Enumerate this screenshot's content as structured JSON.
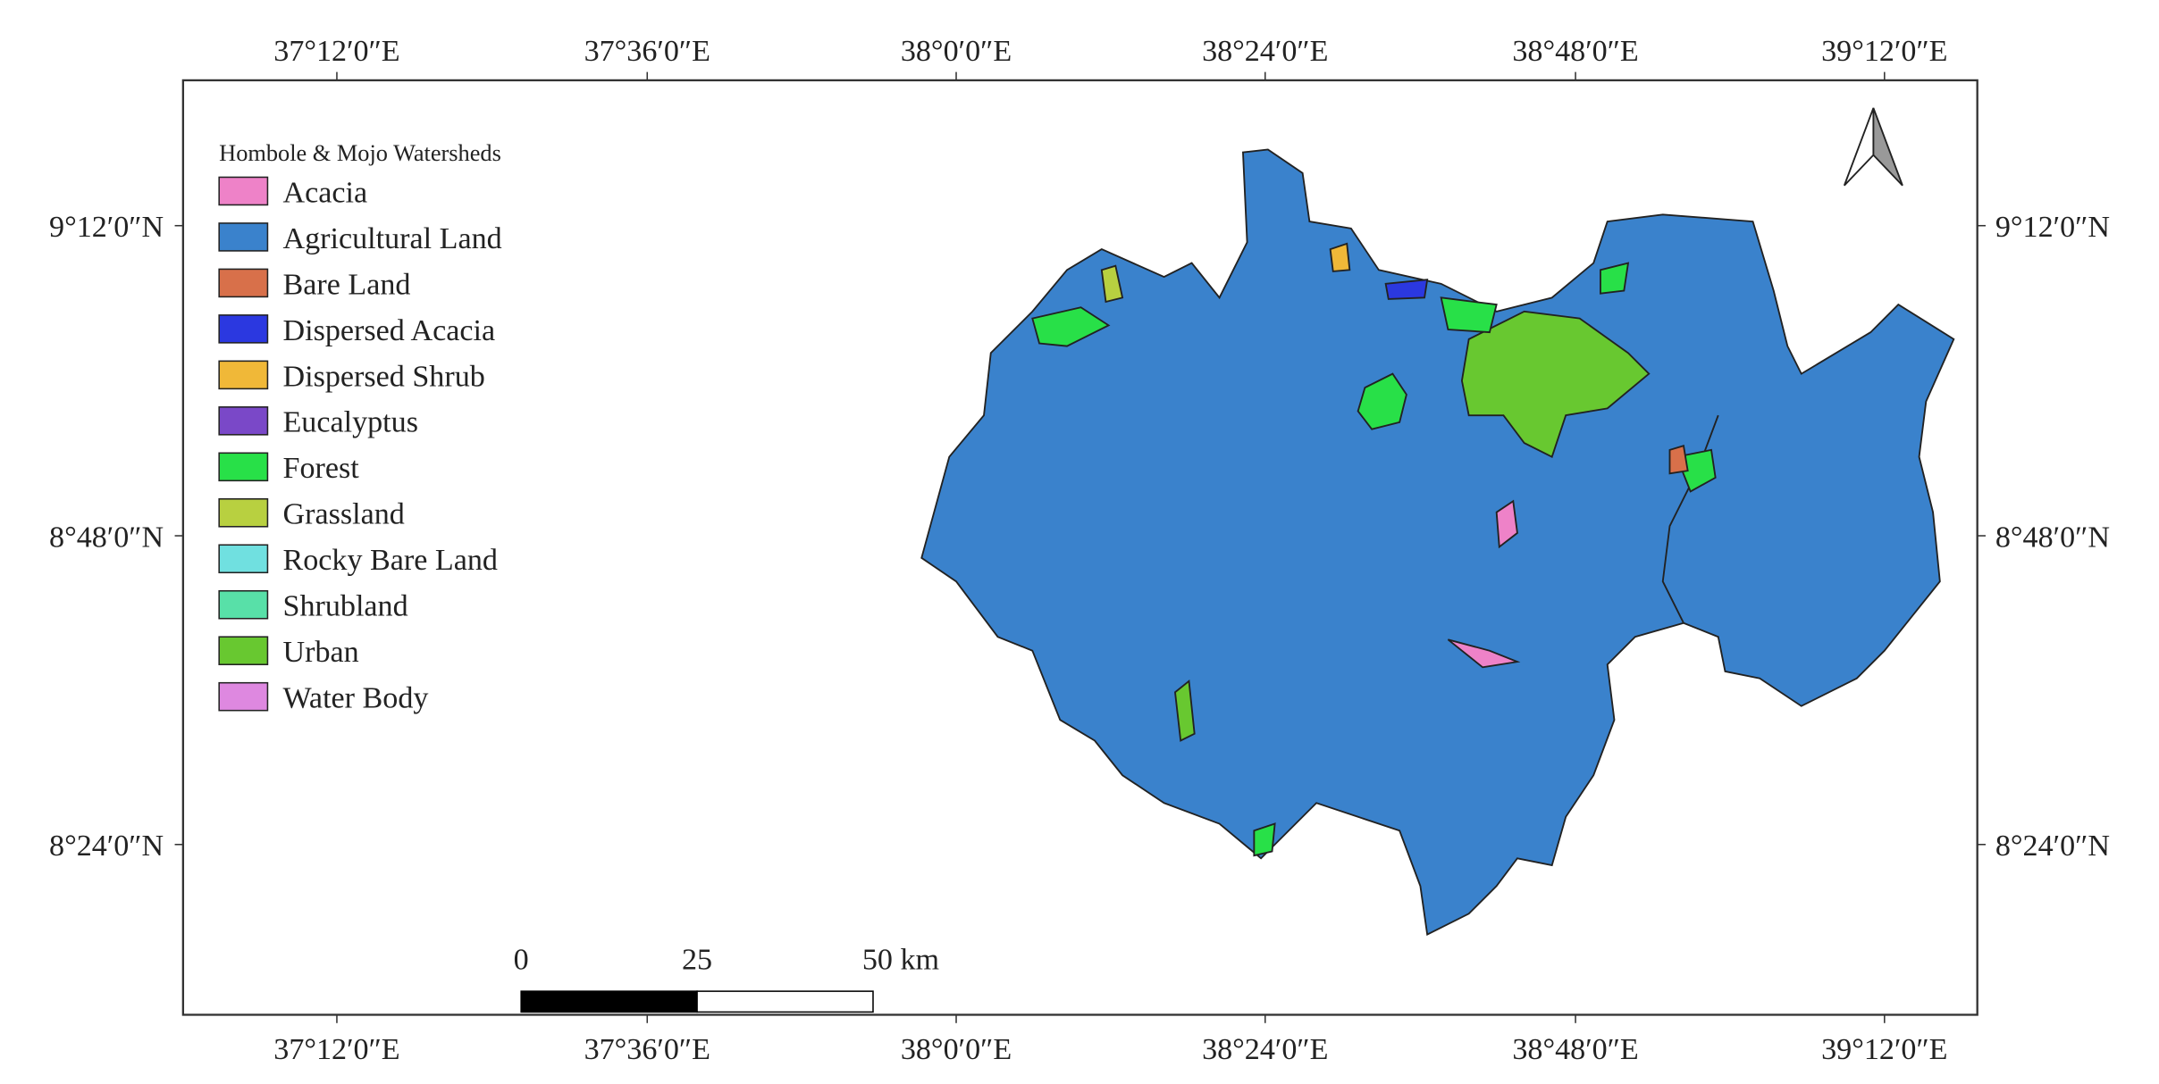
{
  "legend": {
    "title": "Hombole & Mojo Watersheds",
    "items": [
      {
        "label": "Acacia",
        "color": "#ee82c8"
      },
      {
        "label": "Agricultural Land",
        "color": "#3a82cc"
      },
      {
        "label": "Bare Land",
        "color": "#d8704a"
      },
      {
        "label": "Dispersed Acacia",
        "color": "#2b38e0"
      },
      {
        "label": "Dispersed Shrub",
        "color": "#f0b838"
      },
      {
        "label": "Eucalyptus",
        "color": "#7a48c8"
      },
      {
        "label": "Forest",
        "color": "#28e048"
      },
      {
        "label": "Grassland",
        "color": "#b8d040"
      },
      {
        "label": "Rocky Bare Land",
        "color": "#70e0e0"
      },
      {
        "label": "Shrubland",
        "color": "#58e0a8"
      },
      {
        "label": "Urban",
        "color": "#68c830"
      },
      {
        "label": "Water Body",
        "color": "#de88e0"
      }
    ]
  },
  "longitude_labels": [
    "37°12′0″E",
    "37°36′0″E",
    "38°0′0″E",
    "38°24′0″E",
    "38°48′0″E",
    "39°12′0″E"
  ],
  "latitude_labels": [
    "9°12′0″N",
    "8°48′0″N",
    "8°24′0″N"
  ],
  "scale_bar": {
    "labels": [
      "0",
      "25",
      "50 km"
    ]
  }
}
